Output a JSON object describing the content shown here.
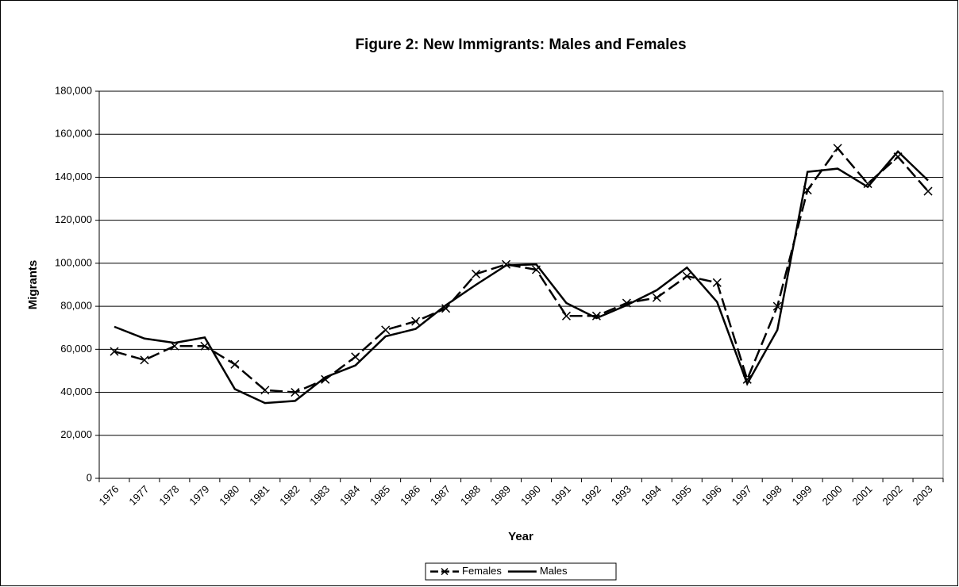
{
  "chart_data": {
    "type": "line",
    "title": "Figure 2: New Immigrants: Males and Females",
    "x_label": "Year",
    "y_label": "Migrants",
    "categories": [
      "1976",
      "1977",
      "1978",
      "1979",
      "1980",
      "1981",
      "1982",
      "1983",
      "1984",
      "1985",
      "1986",
      "1987",
      "1988",
      "1989",
      "1990",
      "1991",
      "1992",
      "1993",
      "1994",
      "1995",
      "1996",
      "1997",
      "1998",
      "1999",
      "2000",
      "2001",
      "2002",
      "2003"
    ],
    "series": [
      {
        "name": "Females",
        "color": "#000000",
        "line_style": "dashed",
        "marker": "x",
        "values": [
          59000,
          55000,
          61500,
          61500,
          53000,
          41000,
          40000,
          46000,
          56500,
          69000,
          73000,
          79000,
          95000,
          99500,
          97000,
          75500,
          75500,
          81500,
          84000,
          94000,
          91000,
          46000,
          80000,
          134000,
          153500,
          137000,
          149500,
          133500
        ]
      },
      {
        "name": "Males",
        "color": "#000000",
        "line_style": "solid",
        "values": [
          70500,
          65000,
          63000,
          65500,
          41500,
          35000,
          36000,
          47000,
          52500,
          66000,
          69500,
          80500,
          90000,
          99000,
          99500,
          81500,
          74500,
          80500,
          87500,
          98000,
          82000,
          44000,
          69000,
          142500,
          144000,
          135500,
          152000,
          138500
        ]
      }
    ],
    "ylim": [
      0,
      180000
    ],
    "yticks": [
      0,
      {
        "value": 20000,
        "label": "20,000"
      },
      {
        "value": 40000,
        "label": "40,000"
      },
      {
        "value": 60000,
        "label": "60,000"
      },
      {
        "value": 80000,
        "label": "80,000"
      },
      {
        "value": 100000,
        "label": "100,000"
      },
      {
        "value": 120000,
        "label": "120,000"
      },
      {
        "value": 140000,
        "label": "140,000"
      },
      {
        "value": 160000,
        "label": "160,000"
      },
      {
        "value": 180000,
        "label": "180,000"
      }
    ],
    "grid": true,
    "legend": "bottom"
  }
}
